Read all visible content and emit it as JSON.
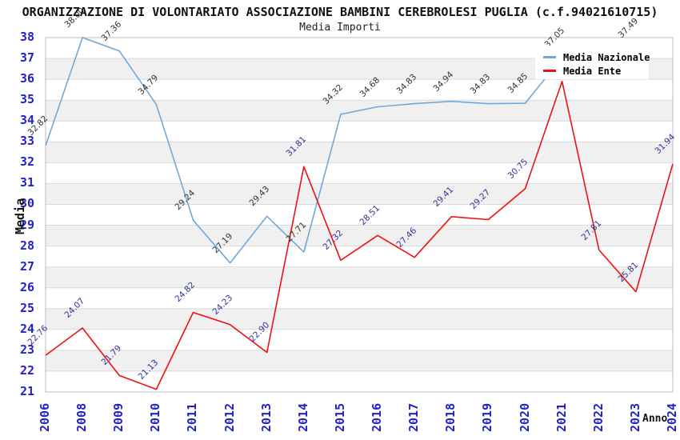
{
  "header": {
    "title": "ORGANIZZAZIONE DI VOLONTARIATO ASSOCIAZIONE BAMBINI CEREBROLESI PUGLIA (c.f.94021610715)",
    "subtitle": "Media Importi"
  },
  "axes": {
    "y_title": "Media",
    "x_title": "Anno",
    "y_ticks": [
      21,
      22,
      23,
      24,
      25,
      26,
      27,
      28,
      29,
      30,
      31,
      32,
      33,
      34,
      35,
      36,
      37,
      38
    ],
    "tick_color": "#2222cc"
  },
  "legend": {
    "position": "top-right",
    "items": [
      {
        "label": "Media Nazionale",
        "color": "#6fa8dc"
      },
      {
        "label": "Media Ente",
        "color": "#ee1111"
      }
    ]
  },
  "chart_data": {
    "type": "line",
    "title": "ORGANIZZAZIONE DI VOLONTARIATO ASSOCIAZIONE BAMBINI CEREBROLESI PUGLIA (c.f.94021610715)",
    "subtitle": "Media Importi",
    "xlabel": "Anno",
    "ylabel": "Media",
    "ylim": [
      21,
      38
    ],
    "grid": "horizontal gridlines with alternating gray bands",
    "legend_position": "top-right",
    "x_categories": [
      "2006",
      "2008",
      "2009",
      "2010",
      "2011",
      "2012",
      "2013",
      "2014",
      "2015",
      "2016",
      "2017",
      "2018",
      "2019",
      "2020",
      "2021",
      "2022",
      "2023",
      "2024"
    ],
    "series": [
      {
        "name": "Media Nazionale",
        "color": "#6fa8dc",
        "label_color": "#333333",
        "values": [
          32.82,
          38.0,
          37.36,
          34.79,
          29.24,
          27.19,
          29.43,
          27.71,
          34.32,
          34.68,
          34.83,
          34.94,
          34.83,
          34.85,
          37.05,
          null,
          37.49,
          null
        ],
        "point_labels": [
          "32.82",
          "38.00",
          "37.36",
          "34.79",
          "29.24",
          "27.19",
          "29.43",
          "27.71",
          "34.32",
          "34.68",
          "34.83",
          "34.94",
          "34.83",
          "34.85",
          "37.05",
          "",
          "37.49",
          ""
        ]
      },
      {
        "name": "Media Ente",
        "color": "#ee1111",
        "label_color": "#32329b",
        "values": [
          22.76,
          24.07,
          21.79,
          21.13,
          24.82,
          24.23,
          22.9,
          31.81,
          27.32,
          28.51,
          27.46,
          29.41,
          29.27,
          30.75,
          35.9,
          27.81,
          25.81,
          31.94
        ],
        "point_labels": [
          "22.76",
          "24.07",
          "21.79",
          "21.13",
          "24.82",
          "24.23",
          "22.90",
          "31.81",
          "27.32",
          "28.51",
          "27.46",
          "29.41",
          "29.27",
          "30.75",
          "",
          "27.81",
          "25.81",
          "31.94"
        ]
      }
    ]
  }
}
